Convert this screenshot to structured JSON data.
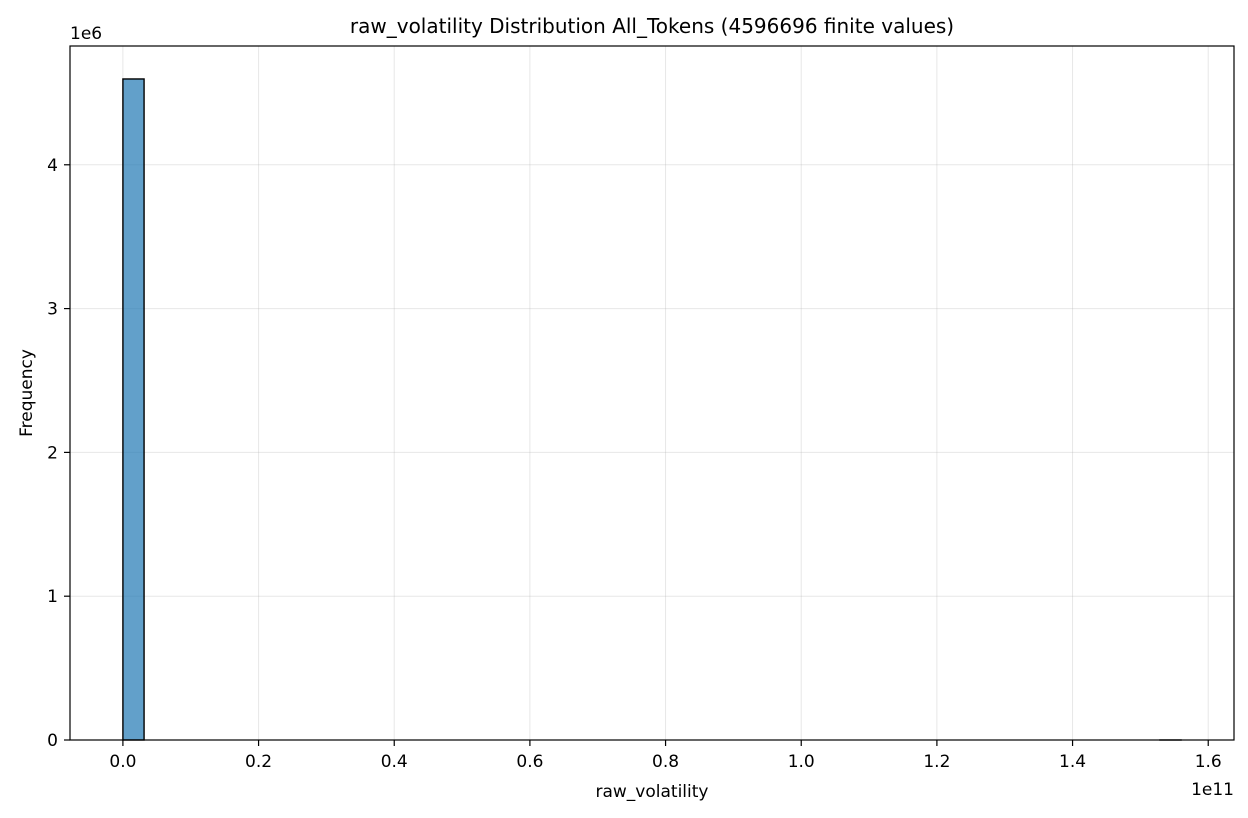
{
  "chart_data": {
    "type": "bar",
    "title": "raw_volatility Distribution All_Tokens (4596696 finite values)",
    "xlabel": "raw_volatility",
    "ylabel": "Frequency",
    "x_offset_label": "1e11",
    "y_offset_label": "1e6",
    "x_ticks": [
      {
        "value": 0.0,
        "label": "0.0"
      },
      {
        "value": 0.2,
        "label": "0.2"
      },
      {
        "value": 0.4,
        "label": "0.4"
      },
      {
        "value": 0.6,
        "label": "0.6"
      },
      {
        "value": 0.8,
        "label": "0.8"
      },
      {
        "value": 1.0,
        "label": "1.0"
      },
      {
        "value": 1.2,
        "label": "1.2"
      },
      {
        "value": 1.4,
        "label": "1.4"
      },
      {
        "value": 1.6,
        "label": "1.6"
      }
    ],
    "y_ticks": [
      {
        "value": 0,
        "label": "0"
      },
      {
        "value": 1,
        "label": "1"
      },
      {
        "value": 2,
        "label": "2"
      },
      {
        "value": 3,
        "label": "3"
      },
      {
        "value": 4,
        "label": "4"
      }
    ],
    "xlim": [
      -0.078,
      1.638
    ],
    "ylim": [
      0,
      4.826
    ],
    "bins": [
      {
        "start": 0.0,
        "end": 0.0312,
        "count": 4.5967
      },
      {
        "start": 1.5288,
        "end": 1.56,
        "count": 1e-05
      }
    ],
    "bar_color": "#1f77b4",
    "bar_alpha": 0.7,
    "bar_edge_color": "#000000",
    "grid": true
  }
}
